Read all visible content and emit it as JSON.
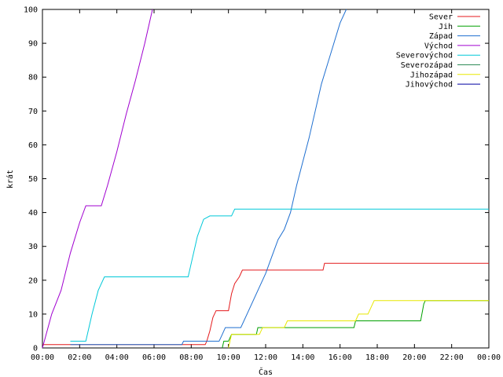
{
  "chart_data": {
    "type": "line",
    "title": "",
    "xlabel": "Čas",
    "ylabel": "krát",
    "xlim": [
      "00:00",
      "24:00"
    ],
    "ylim": [
      0,
      100
    ],
    "x_ticks": [
      "00:00",
      "02:00",
      "04:00",
      "06:00",
      "08:00",
      "10:00",
      "12:00",
      "14:00",
      "16:00",
      "18:00",
      "20:00",
      "22:00",
      "00:00"
    ],
    "y_ticks": [
      "0",
      "10",
      "20",
      "30",
      "40",
      "50",
      "60",
      "70",
      "80",
      "90",
      "100"
    ],
    "grid": false,
    "legend_position": "top-right",
    "series": [
      {
        "name": "Sever",
        "color": "#e41a1c",
        "points": [
          [
            "00:00",
            1
          ],
          [
            "08:45",
            1
          ],
          [
            "08:50",
            2
          ],
          [
            "09:00",
            5
          ],
          [
            "09:10",
            9
          ],
          [
            "09:20",
            11
          ],
          [
            "09:30",
            11
          ],
          [
            "10:00",
            11
          ],
          [
            "10:10",
            16
          ],
          [
            "10:20",
            19
          ],
          [
            "10:35",
            21
          ],
          [
            "10:45",
            23
          ],
          [
            "15:05",
            23
          ],
          [
            "15:10",
            25
          ],
          [
            "24:00",
            25
          ]
        ]
      },
      {
        "name": "Jih",
        "color": "#00a000",
        "points": [
          [
            "09:40",
            0
          ],
          [
            "09:45",
            2
          ],
          [
            "10:00",
            2
          ],
          [
            "10:10",
            4
          ],
          [
            "11:30",
            4
          ],
          [
            "11:35",
            6
          ],
          [
            "16:45",
            6
          ],
          [
            "16:50",
            8
          ],
          [
            "20:20",
            8
          ],
          [
            "20:30",
            13
          ],
          [
            "20:35",
            14
          ],
          [
            "24:00",
            14
          ]
        ]
      },
      {
        "name": "Západ",
        "color": "#1f6fd0",
        "points": [
          [
            "01:30",
            1
          ],
          [
            "07:30",
            1
          ],
          [
            "07:35",
            2
          ],
          [
            "09:30",
            2
          ],
          [
            "09:40",
            4
          ],
          [
            "09:50",
            6
          ],
          [
            "10:40",
            6
          ],
          [
            "11:00",
            10
          ],
          [
            "11:20",
            14
          ],
          [
            "11:40",
            18
          ],
          [
            "12:00",
            22
          ],
          [
            "12:20",
            27
          ],
          [
            "12:40",
            32
          ],
          [
            "13:00",
            35
          ],
          [
            "13:20",
            40
          ],
          [
            "13:40",
            48
          ],
          [
            "14:00",
            55
          ],
          [
            "14:20",
            62
          ],
          [
            "14:40",
            70
          ],
          [
            "15:00",
            78
          ],
          [
            "15:20",
            84
          ],
          [
            "15:40",
            90
          ],
          [
            "16:00",
            96
          ],
          [
            "16:20",
            100
          ]
        ]
      },
      {
        "name": "Východ",
        "color": "#a000d0",
        "points": [
          [
            "00:00",
            0
          ],
          [
            "00:30",
            10
          ],
          [
            "01:00",
            17
          ],
          [
            "01:30",
            28
          ],
          [
            "02:00",
            37
          ],
          [
            "02:20",
            42
          ],
          [
            "03:10",
            42
          ],
          [
            "03:30",
            48
          ],
          [
            "04:00",
            58
          ],
          [
            "04:30",
            69
          ],
          [
            "05:00",
            79
          ],
          [
            "05:30",
            90
          ],
          [
            "05:55",
            100
          ]
        ]
      },
      {
        "name": "Severovýchod",
        "color": "#00c8d8",
        "points": [
          [
            "01:30",
            2
          ],
          [
            "02:20",
            2
          ],
          [
            "02:40",
            10
          ],
          [
            "03:00",
            17
          ],
          [
            "03:20",
            21
          ],
          [
            "07:50",
            21
          ],
          [
            "08:00",
            25
          ],
          [
            "08:20",
            33
          ],
          [
            "08:40",
            38
          ],
          [
            "09:00",
            39
          ],
          [
            "10:10",
            39
          ],
          [
            "10:20",
            41
          ],
          [
            "24:00",
            41
          ]
        ]
      },
      {
        "name": "Severozápad",
        "color": "#2e8b57",
        "points": []
      },
      {
        "name": "Jihozápad",
        "color": "#e8e800",
        "points": [
          [
            "10:00",
            0
          ],
          [
            "10:10",
            4
          ],
          [
            "11:40",
            4
          ],
          [
            "11:50",
            6
          ],
          [
            "13:00",
            6
          ],
          [
            "13:10",
            8
          ],
          [
            "16:50",
            8
          ],
          [
            "17:00",
            10
          ],
          [
            "17:30",
            10
          ],
          [
            "17:40",
            12
          ],
          [
            "17:50",
            14
          ],
          [
            "24:00",
            14
          ]
        ]
      },
      {
        "name": "Jihovýchod",
        "color": "#0000a0",
        "points": []
      }
    ]
  }
}
